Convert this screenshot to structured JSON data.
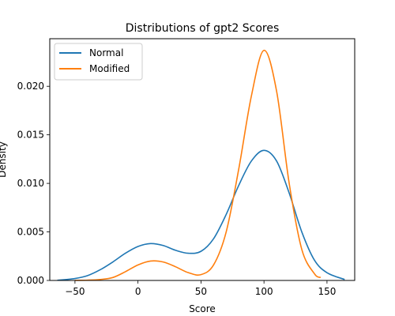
{
  "chart_data": {
    "type": "line",
    "title": "Distributions of gpt2 Scores",
    "xlabel": "Score",
    "ylabel": "Density",
    "xlim": [
      -70,
      172
    ],
    "ylim": [
      0,
      0.0249
    ],
    "xticks": [
      -50,
      0,
      50,
      100,
      150
    ],
    "xtick_labels": [
      "−50",
      "0",
      "50",
      "100",
      "150"
    ],
    "yticks": [
      0,
      0.005,
      0.01,
      0.015,
      0.02
    ],
    "ytick_labels": [
      "0.000",
      "0.005",
      "0.010",
      "0.015",
      "0.020"
    ],
    "grid": false,
    "legend_position": "top-left",
    "series": [
      {
        "name": "Normal",
        "color": "#1f77b4",
        "x": [
          -64,
          -50,
          -40,
          -30,
          -20,
          -10,
          0,
          10,
          20,
          30,
          40,
          50,
          60,
          70,
          80,
          90,
          100,
          110,
          120,
          130,
          140,
          150,
          164
        ],
        "y": [
          2e-05,
          0.0002,
          0.0005,
          0.0011,
          0.0019,
          0.0028,
          0.0035,
          0.0038,
          0.0036,
          0.0031,
          0.0028,
          0.003,
          0.0043,
          0.0068,
          0.0098,
          0.0123,
          0.0134,
          0.0123,
          0.009,
          0.005,
          0.0021,
          0.0008,
          0.0001
        ]
      },
      {
        "name": "Modified",
        "color": "#ff7f0e",
        "x": [
          -50,
          -40,
          -30,
          -20,
          -10,
          0,
          10,
          20,
          30,
          40,
          50,
          60,
          70,
          80,
          90,
          100,
          110,
          120,
          130,
          140,
          145
        ],
        "y": [
          1e-05,
          3e-05,
          0.0001,
          0.0003,
          0.0009,
          0.0016,
          0.002,
          0.0019,
          0.0014,
          0.0008,
          0.0006,
          0.0016,
          0.005,
          0.0115,
          0.019,
          0.0237,
          0.0195,
          0.01,
          0.0032,
          0.0007,
          0.0003
        ]
      }
    ]
  }
}
